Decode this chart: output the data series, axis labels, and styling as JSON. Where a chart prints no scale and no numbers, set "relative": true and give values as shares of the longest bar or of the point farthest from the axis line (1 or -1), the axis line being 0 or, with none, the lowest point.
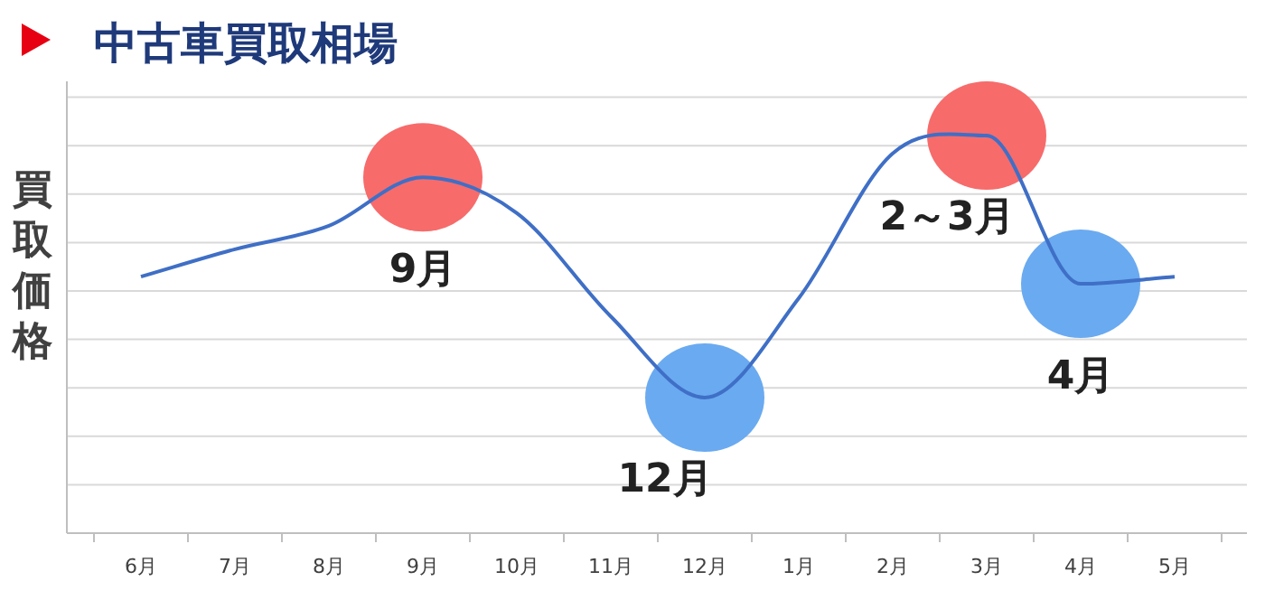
{
  "chart_data": {
    "type": "line",
    "title": "中古車買取相場",
    "ylabel": "買取価格",
    "relative": true,
    "grid": "y",
    "marker": "none",
    "line_style": "solid",
    "categories": [
      "6月",
      "7月",
      "8月",
      "9月",
      "10月",
      "11月",
      "12月",
      "1月",
      "2月",
      "3月",
      "4月",
      "5月"
    ],
    "series": [
      {
        "color": "#3f6fc6",
        "values": [
          0.645,
          0.714,
          0.773,
          0.895,
          0.805,
          0.545,
          0.341,
          0.591,
          0.955,
          1,
          0.627,
          0.645
        ]
      }
    ],
    "annotations": [
      {
        "text": "9月",
        "x": "9月",
        "y": 0.895
      },
      {
        "text": "12月",
        "x": "12月",
        "y": 0.341
      },
      {
        "text": "2～3月",
        "y": 1
      },
      {
        "text": "4月",
        "x": "4月",
        "y": 0.627
      }
    ]
  }
}
